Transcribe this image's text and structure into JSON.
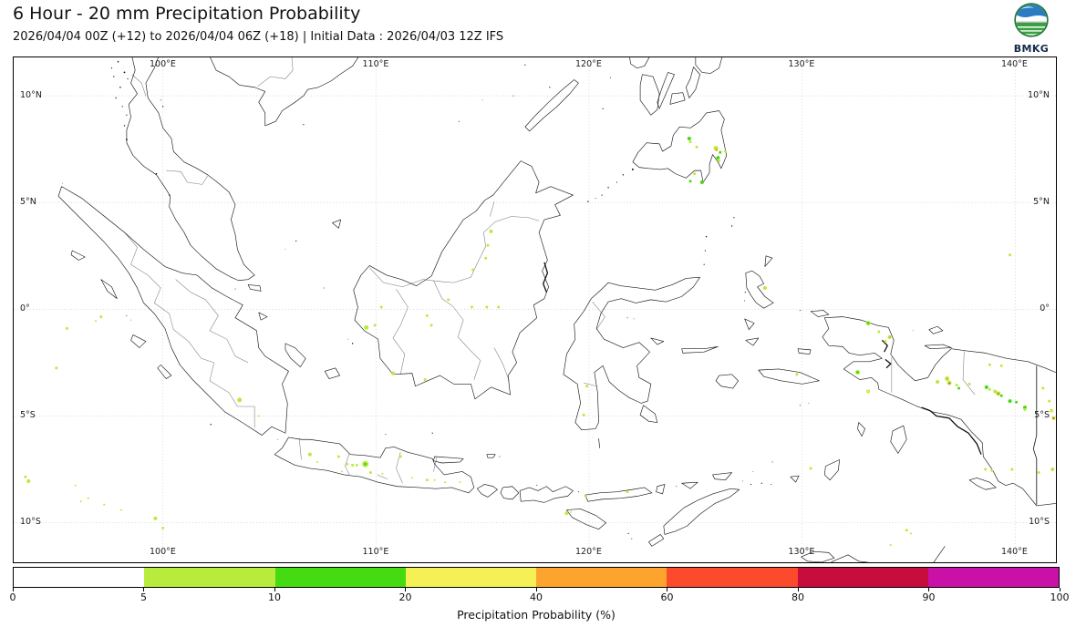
{
  "header": {
    "title": "6 Hour - 20 mm Precipitation Probability",
    "subtitle": "2026/04/04 00Z (+12) to 2026/04/04 06Z (+18) | Initial Data : 2026/04/03 12Z IFS",
    "logo_text": "BMKG"
  },
  "map_axes": {
    "lon_ticks": [
      {
        "value": 100,
        "label": "100°E"
      },
      {
        "value": 110,
        "label": "110°E"
      },
      {
        "value": 120,
        "label": "120°E"
      },
      {
        "value": 130,
        "label": "130°E"
      },
      {
        "value": 140,
        "label": "140°E"
      }
    ],
    "lat_ticks": [
      {
        "value": 10,
        "label": "10°N"
      },
      {
        "value": 5,
        "label": "5°N"
      },
      {
        "value": 0,
        "label": "0°"
      },
      {
        "value": -5,
        "label": "5°S"
      },
      {
        "value": -10,
        "label": "10°S"
      }
    ]
  },
  "colorbar": {
    "title": "Precipitation Probability (%)",
    "tick_labels": [
      "0",
      "5",
      "10",
      "20",
      "40",
      "60",
      "80",
      "90",
      "100"
    ],
    "segment_colors": [
      "#ffffff",
      "#b8ec3c",
      "#46da12",
      "#f6f057",
      "#fda42e",
      "#fb4a2c",
      "#c60d3e",
      "#c911a8"
    ]
  },
  "chart_data": {
    "type": "geo-probability-map",
    "variable": "6-hour precipitation probability of exceeding 20 mm",
    "unit": "%",
    "region": {
      "lon_min": 93.0,
      "lon_max": 141.9,
      "lat_min": -11.85,
      "lat_max": 11.8
    },
    "grid_lon": [
      100,
      110,
      120,
      130,
      140
    ],
    "grid_lat": [
      10,
      5,
      0,
      -5,
      -10
    ],
    "classes": {
      "yg": {
        "range": "5-10",
        "color": "#b8ec3c"
      },
      "g": {
        "range": "10-20",
        "color": "#46da12"
      },
      "y": {
        "range": "20-40",
        "color": "#f6f057"
      },
      "o": {
        "range": "40-60",
        "color": "#fda42e"
      },
      "r": {
        "range": "60-80",
        "color": "#fb4430"
      }
    },
    "markers": [
      [
        124.7,
        8.0,
        "g",
        4
      ],
      [
        124.75,
        7.85,
        "yg",
        3
      ],
      [
        125.05,
        7.6,
        "yg",
        3
      ],
      [
        124.95,
        6.35,
        "yg",
        3
      ],
      [
        124.75,
        6.0,
        "g",
        3
      ],
      [
        125.3,
        5.95,
        "g",
        4
      ],
      [
        125.95,
        7.55,
        "yg",
        5
      ],
      [
        125.98,
        7.47,
        "o",
        3
      ],
      [
        126.15,
        7.35,
        "g",
        3
      ],
      [
        126.4,
        7.4,
        "yg",
        3
      ],
      [
        126.05,
        7.1,
        "g",
        4
      ],
      [
        126.1,
        6.95,
        "yg",
        3
      ],
      [
        139.75,
        2.55,
        "yg",
        3
      ],
      [
        128.25,
        1.0,
        "yg",
        4
      ],
      [
        115.4,
        3.65,
        "yg",
        4
      ],
      [
        115.25,
        3.0,
        "yg",
        3
      ],
      [
        115.15,
        2.4,
        "yg",
        3
      ],
      [
        114.55,
        1.85,
        "yg",
        3
      ],
      [
        114.5,
        0.1,
        "yg",
        3
      ],
      [
        115.2,
        0.1,
        "yg",
        3
      ],
      [
        115.75,
        0.1,
        "yg",
        3
      ],
      [
        110.25,
        0.1,
        "yg",
        3
      ],
      [
        109.55,
        -0.85,
        "yg",
        5
      ],
      [
        109.95,
        -0.75,
        "yg",
        3
      ],
      [
        112.4,
        -0.3,
        "yg",
        3
      ],
      [
        112.6,
        -0.75,
        "yg",
        3
      ],
      [
        113.4,
        0.45,
        "yg",
        3
      ],
      [
        110.8,
        -3.0,
        "yg",
        4
      ],
      [
        112.3,
        -3.3,
        "yg",
        3
      ],
      [
        97.1,
        -0.35,
        "yg",
        3
      ],
      [
        96.85,
        -0.55,
        "yg",
        2
      ],
      [
        95.5,
        -0.9,
        "yg",
        3
      ],
      [
        95.0,
        -2.75,
        "yg",
        3
      ],
      [
        103.6,
        -4.25,
        "yg",
        5
      ],
      [
        104.5,
        -5.0,
        "yg",
        2
      ],
      [
        93.55,
        -7.85,
        "yg",
        3
      ],
      [
        93.7,
        -8.05,
        "yg",
        4
      ],
      [
        95.9,
        -8.25,
        "yg",
        2
      ],
      [
        96.15,
        -9.0,
        "yg",
        2
      ],
      [
        96.5,
        -8.85,
        "yg",
        2
      ],
      [
        97.25,
        -9.15,
        "yg",
        2
      ],
      [
        98.05,
        -9.4,
        "yg",
        2
      ],
      [
        99.65,
        -9.8,
        "yg",
        4
      ],
      [
        100.0,
        -10.25,
        "yg",
        3
      ],
      [
        106.9,
        -6.8,
        "yg",
        4
      ],
      [
        107.25,
        -7.15,
        "yg",
        2
      ],
      [
        108.25,
        -6.9,
        "yg",
        3
      ],
      [
        108.65,
        -7.25,
        "yg",
        3
      ],
      [
        108.9,
        -7.3,
        "yg",
        3
      ],
      [
        109.1,
        -7.3,
        "yg",
        3
      ],
      [
        109.5,
        -7.25,
        "yg",
        7
      ],
      [
        109.5,
        -7.25,
        "g",
        3
      ],
      [
        109.75,
        -7.65,
        "yg",
        3
      ],
      [
        110.3,
        -7.7,
        "yg",
        2
      ],
      [
        108.4,
        -7.6,
        "yg",
        2
      ],
      [
        111.15,
        -6.9,
        "yg",
        3
      ],
      [
        111.7,
        -7.9,
        "yg",
        2
      ],
      [
        112.4,
        -8.0,
        "yg",
        3
      ],
      [
        112.75,
        -8.0,
        "yg",
        2
      ],
      [
        113.25,
        -8.1,
        "yg",
        2
      ],
      [
        113.95,
        -8.1,
        "yg",
        2
      ],
      [
        119.9,
        -3.6,
        "yg",
        3
      ],
      [
        119.75,
        -4.95,
        "yg",
        3
      ],
      [
        119.85,
        -8.75,
        "yg",
        3
      ],
      [
        121.8,
        -8.55,
        "yg",
        3
      ],
      [
        118.95,
        -9.55,
        "yg",
        4
      ],
      [
        119.15,
        -9.5,
        "yg",
        2
      ],
      [
        129.75,
        -3.05,
        "yg",
        3
      ],
      [
        130.4,
        -7.45,
        "yg",
        3
      ],
      [
        133.1,
        -0.65,
        "yg",
        5
      ],
      [
        133.1,
        -0.65,
        "g",
        3
      ],
      [
        133.6,
        -1.05,
        "yg",
        3
      ],
      [
        133.9,
        -1.5,
        "yg",
        3
      ],
      [
        134.1,
        -1.3,
        "yg",
        4
      ],
      [
        134.12,
        -1.3,
        "o",
        2
      ],
      [
        132.6,
        -2.95,
        "yg",
        5
      ],
      [
        132.6,
        -2.95,
        "g",
        3
      ],
      [
        133.1,
        -3.85,
        "yg",
        4
      ],
      [
        133.1,
        -3.85,
        "y",
        2
      ],
      [
        136.35,
        -3.4,
        "yg",
        4
      ],
      [
        136.8,
        -3.25,
        "yg",
        5
      ],
      [
        136.8,
        -3.25,
        "o",
        2
      ],
      [
        136.9,
        -3.45,
        "yg",
        5
      ],
      [
        136.92,
        -3.47,
        "r",
        2
      ],
      [
        137.25,
        -3.55,
        "yg",
        3
      ],
      [
        137.35,
        -3.7,
        "g",
        3
      ],
      [
        137.85,
        -3.5,
        "yg",
        3
      ],
      [
        138.8,
        -2.6,
        "yg",
        3
      ],
      [
        139.35,
        -2.65,
        "yg",
        3
      ],
      [
        138.65,
        -3.65,
        "g",
        4
      ],
      [
        138.8,
        -3.75,
        "yg",
        3
      ],
      [
        139.05,
        -3.85,
        "yg",
        4
      ],
      [
        139.2,
        -3.95,
        "yg",
        5
      ],
      [
        139.2,
        -3.95,
        "r",
        2
      ],
      [
        139.35,
        -4.05,
        "g",
        3
      ],
      [
        139.75,
        -4.3,
        "g",
        4
      ],
      [
        140.05,
        -4.35,
        "g",
        3
      ],
      [
        140.45,
        -4.6,
        "g",
        4
      ],
      [
        140.45,
        -4.7,
        "yg",
        3
      ],
      [
        141.3,
        -3.7,
        "yg",
        3
      ],
      [
        141.6,
        -4.3,
        "yg",
        3
      ],
      [
        141.7,
        -4.75,
        "yg",
        4
      ],
      [
        141.7,
        -4.75,
        "y",
        2
      ],
      [
        141.8,
        -5.1,
        "yg",
        4
      ],
      [
        141.8,
        -5.1,
        "r",
        2
      ],
      [
        138.6,
        -7.5,
        "yg",
        3
      ],
      [
        138.9,
        -7.55,
        "yg",
        3
      ],
      [
        139.85,
        -7.5,
        "yg",
        3
      ],
      [
        141.1,
        -7.65,
        "yg",
        3
      ],
      [
        141.75,
        -7.5,
        "yg",
        4
      ],
      [
        134.9,
        -10.35,
        "yg",
        3
      ],
      [
        135.1,
        -10.5,
        "yg",
        2
      ],
      [
        134.15,
        -11.05,
        "yg",
        2
      ]
    ]
  }
}
